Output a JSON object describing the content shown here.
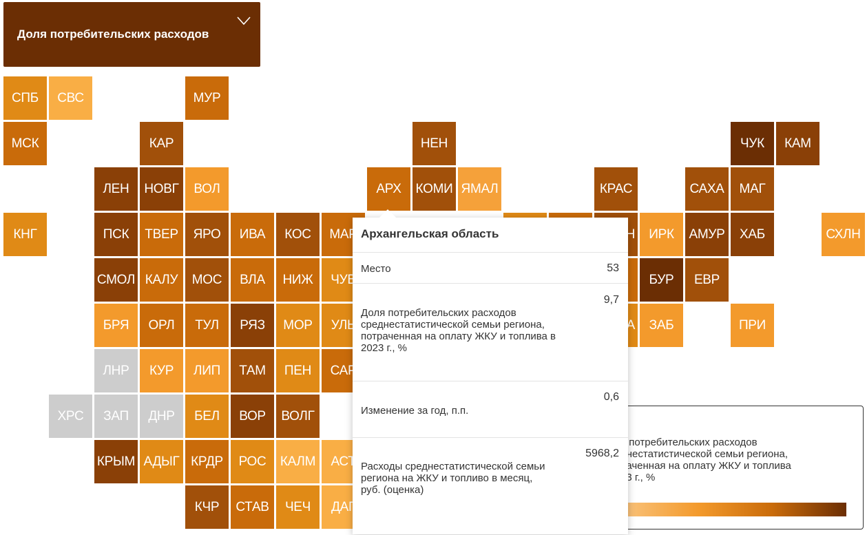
{
  "dropdown": {
    "label": "Доля потребительских расходов",
    "icon": "chevron-down-icon"
  },
  "colors": {
    "l1": "#f9ae45",
    "l2": "#f5a13a",
    "l3": "#f39a2c",
    "m": "#e08a16",
    "d1": "#c96b0a",
    "d2": "#a1500a",
    "d3": "#8a4007",
    "d4": "#6b2e04",
    "gray": "#cdcdcd"
  },
  "regions": [
    {
      "code": "СПБ",
      "c": "m",
      "col": 0,
      "row": 0
    },
    {
      "code": "СВС",
      "c": "l1",
      "col": 1,
      "row": 0
    },
    {
      "code": "МУР",
      "c": "d1",
      "col": 4,
      "row": 0
    },
    {
      "code": "МСК",
      "c": "d1",
      "col": 0,
      "row": 1
    },
    {
      "code": "КАР",
      "c": "d2",
      "col": 3,
      "row": 1
    },
    {
      "code": "НЕН",
      "c": "d2",
      "col": 9,
      "row": 1
    },
    {
      "code": "ЧУК",
      "c": "d4",
      "col": 16,
      "row": 1
    },
    {
      "code": "КАМ",
      "c": "d3",
      "col": 17,
      "row": 1
    },
    {
      "code": "ЛЕН",
      "c": "d3",
      "col": 2,
      "row": 2
    },
    {
      "code": "НОВГ",
      "c": "d3",
      "col": 3,
      "row": 2
    },
    {
      "code": "ВОЛ",
      "c": "l3",
      "col": 4,
      "row": 2
    },
    {
      "code": "АРХ",
      "c": "d1",
      "col": 8,
      "row": 2
    },
    {
      "code": "КОМИ",
      "c": "d2",
      "col": 9,
      "row": 2
    },
    {
      "code": "ЯМАЛ",
      "c": "l2",
      "col": 10,
      "row": 2
    },
    {
      "code": "КРАС",
      "c": "d2",
      "col": 13,
      "row": 2
    },
    {
      "code": "САХА",
      "c": "d2",
      "col": 15,
      "row": 2
    },
    {
      "code": "МАГ",
      "c": "d2",
      "col": 16,
      "row": 2
    },
    {
      "code": "КНГ",
      "c": "m",
      "col": 0,
      "row": 3
    },
    {
      "code": "ПСК",
      "c": "d3",
      "col": 2,
      "row": 3
    },
    {
      "code": "ТВЕР",
      "c": "d1",
      "col": 3,
      "row": 3
    },
    {
      "code": "ЯРО",
      "c": "d2",
      "col": 4,
      "row": 3
    },
    {
      "code": "ИВА",
      "c": "d1",
      "col": 5,
      "row": 3
    },
    {
      "code": "КОС",
      "c": "d2",
      "col": 6,
      "row": 3
    },
    {
      "code": "МАР",
      "c": "d1",
      "col": 7,
      "row": 3
    },
    {
      "code": "ИРК",
      "c": "l3",
      "col": 14,
      "row": 3
    },
    {
      "code": "АМУР",
      "c": "d3",
      "col": 15,
      "row": 3
    },
    {
      "code": "ХАБ",
      "c": "d3",
      "col": 16,
      "row": 3
    },
    {
      "code": "СХЛН",
      "c": "l3",
      "col": 18,
      "row": 3
    },
    {
      "code": "СМОЛ",
      "c": "d3",
      "col": 2,
      "row": 4
    },
    {
      "code": "КАЛУ",
      "c": "d1",
      "col": 3,
      "row": 4
    },
    {
      "code": "МОС",
      "c": "d2",
      "col": 4,
      "row": 4
    },
    {
      "code": "ВЛА",
      "c": "d1",
      "col": 5,
      "row": 4
    },
    {
      "code": "НИЖ",
      "c": "d1",
      "col": 6,
      "row": 4
    },
    {
      "code": "ЧУВ",
      "c": "m",
      "col": 7,
      "row": 4
    },
    {
      "code": "БУР",
      "c": "d4",
      "col": 14,
      "row": 4
    },
    {
      "code": "ЕВР",
      "c": "d2",
      "col": 15,
      "row": 4
    },
    {
      "code": "БРЯ",
      "c": "l3",
      "col": 2,
      "row": 5
    },
    {
      "code": "ОРЛ",
      "c": "d1",
      "col": 3,
      "row": 5
    },
    {
      "code": "ТУЛ",
      "c": "d1",
      "col": 4,
      "row": 5
    },
    {
      "code": "РЯЗ",
      "c": "d3",
      "col": 5,
      "row": 5
    },
    {
      "code": "МОР",
      "c": "m",
      "col": 6,
      "row": 5
    },
    {
      "code": "УЛЬ",
      "c": "m",
      "col": 7,
      "row": 5
    },
    {
      "code": "ЗАБ",
      "c": "l3",
      "col": 14,
      "row": 5
    },
    {
      "code": "ПРИ",
      "c": "l3",
      "col": 16,
      "row": 5
    },
    {
      "code": "ЛНР",
      "c": "gray",
      "col": 2,
      "row": 6
    },
    {
      "code": "КУР",
      "c": "l3",
      "col": 3,
      "row": 6
    },
    {
      "code": "ЛИП",
      "c": "l3",
      "col": 4,
      "row": 6
    },
    {
      "code": "ТАМ",
      "c": "d2",
      "col": 5,
      "row": 6
    },
    {
      "code": "ПЕН",
      "c": "m",
      "col": 6,
      "row": 6
    },
    {
      "code": "САР",
      "c": "d1",
      "col": 7,
      "row": 6
    },
    {
      "code": "ХРС",
      "c": "gray",
      "col": 1,
      "row": 7
    },
    {
      "code": "ЗАП",
      "c": "gray",
      "col": 2,
      "row": 7
    },
    {
      "code": "ДНР",
      "c": "gray",
      "col": 3,
      "row": 7
    },
    {
      "code": "БЕЛ",
      "c": "m",
      "col": 4,
      "row": 7
    },
    {
      "code": "ВОР",
      "c": "d3",
      "col": 5,
      "row": 7
    },
    {
      "code": "ВОЛГ",
      "c": "d2",
      "col": 6,
      "row": 7
    },
    {
      "code": "КРЫМ",
      "c": "d3",
      "col": 2,
      "row": 8
    },
    {
      "code": "АДЫГ",
      "c": "m",
      "col": 3,
      "row": 8
    },
    {
      "code": "КРДР",
      "c": "d1",
      "col": 4,
      "row": 8
    },
    {
      "code": "РОС",
      "c": "m",
      "col": 5,
      "row": 8
    },
    {
      "code": "КАЛМ",
      "c": "l1",
      "col": 6,
      "row": 8
    },
    {
      "code": "АСТ",
      "c": "l1",
      "col": 7,
      "row": 8
    },
    {
      "code": "КЧР",
      "c": "d2",
      "col": 4,
      "row": 9
    },
    {
      "code": "СТАВ",
      "c": "d1",
      "col": 5,
      "row": 9
    },
    {
      "code": "ЧЕЧ",
      "c": "m",
      "col": 6,
      "row": 9
    },
    {
      "code": "ДАГ",
      "c": "l1",
      "col": 7,
      "row": 9
    }
  ],
  "hidden_tiles": [
    {
      "c": "m",
      "col": 11,
      "row": 3
    },
    {
      "c": "d1",
      "col": 12,
      "row": 3
    },
    {
      "c": "d2",
      "col": 13,
      "row": 3
    },
    {
      "c": "d1",
      "col": 11,
      "row": 4
    },
    {
      "c": "m",
      "col": 12,
      "row": 4
    },
    {
      "c": "d1",
      "col": 13,
      "row": 4
    },
    {
      "c": "m",
      "col": 13,
      "row": 5
    }
  ],
  "partial_labels": [
    {
      "text": "А",
      "col": 13,
      "row": 5
    },
    {
      "text": "Н",
      "col": 13,
      "row": 3
    }
  ],
  "tooltip": {
    "title": "Архангельская область",
    "rows": [
      {
        "label": "Место",
        "value": "53"
      },
      {
        "label": "Доля потребительских расходов среднестатистической семьи региона, потраченная на оплату ЖКУ и топлива в 2023 г., %",
        "value": "9,7"
      },
      {
        "label": "Изменение за год, п.п.",
        "value": "0,6"
      },
      {
        "label": "Расходы среднестатистической семьи региона на ЖКУ и топливо в месяц, руб. (оценка)",
        "value": "5968,2"
      }
    ]
  },
  "legend": {
    "title": "я потребительских расходов\nднестатистической семьи региона,\nраченная на оплату ЖКУ и топлива\n23 г., %"
  }
}
